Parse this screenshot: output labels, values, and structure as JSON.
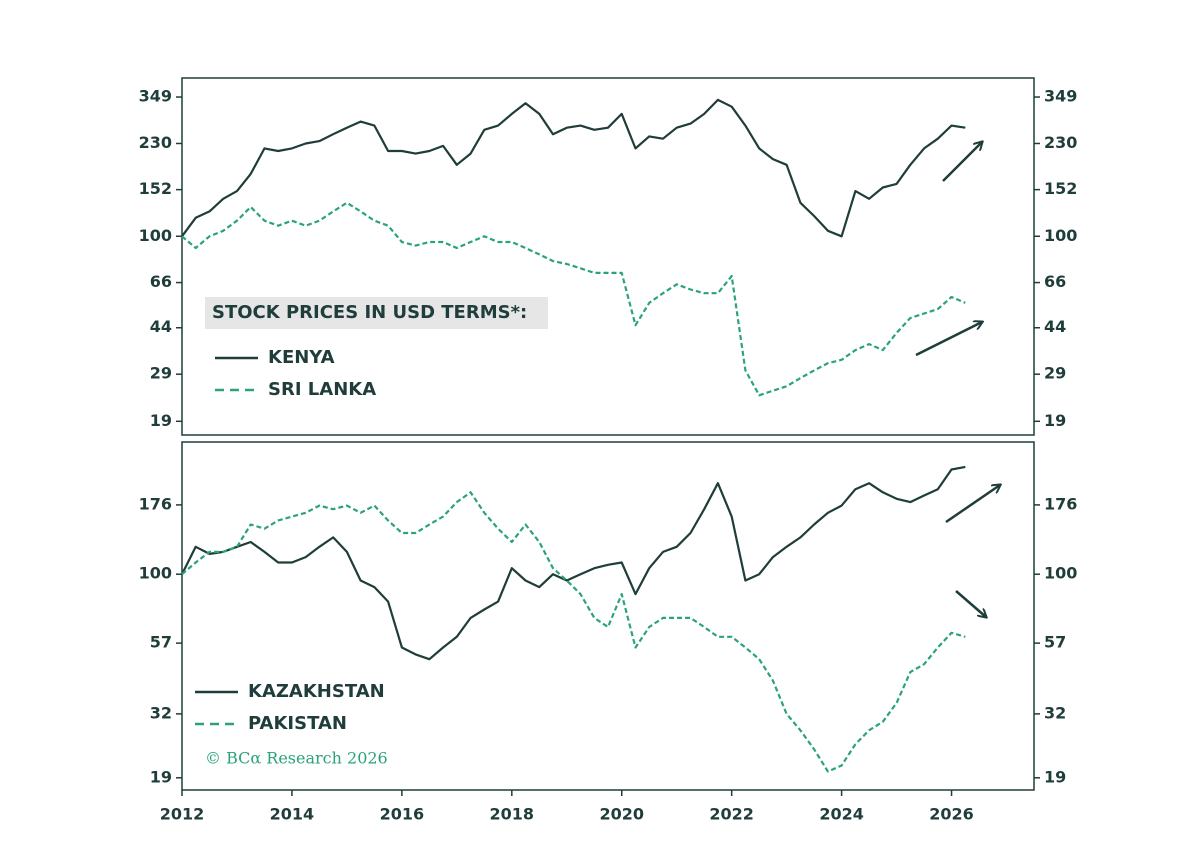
{
  "chart_data": [
    {
      "type": "line",
      "log_scale": true,
      "legend_title": "STOCK PRICES IN USD TERMS*:",
      "x": [
        2012,
        2012.25,
        2012.5,
        2012.75,
        2013,
        2013.25,
        2013.5,
        2013.75,
        2014,
        2014.25,
        2014.5,
        2014.75,
        2015,
        2015.25,
        2015.5,
        2015.75,
        2016,
        2016.25,
        2016.5,
        2016.75,
        2017,
        2017.25,
        2017.5,
        2017.75,
        2018,
        2018.25,
        2018.5,
        2018.75,
        2019,
        2019.25,
        2019.5,
        2019.75,
        2020,
        2020.25,
        2020.5,
        2020.75,
        2021,
        2021.25,
        2021.5,
        2021.75,
        2022,
        2022.25,
        2022.5,
        2022.75,
        2023,
        2023.25,
        2023.5,
        2023.75,
        2024,
        2024.25,
        2024.5,
        2024.75,
        2025,
        2025.25,
        2025.5,
        2025.75,
        2026,
        2026.25
      ],
      "xlim": [
        2012,
        2027.5
      ],
      "ylim": [
        16.8,
        414
      ],
      "yticks": [
        19,
        29,
        44,
        66,
        100,
        152,
        230,
        349
      ],
      "series": [
        {
          "name": "KENYA",
          "color": "#1f3d3a",
          "style": "solid",
          "values": [
            100,
            118,
            125,
            140,
            150,
            175,
            220,
            215,
            220,
            230,
            235,
            250,
            265,
            280,
            270,
            215,
            215,
            210,
            215,
            225,
            190,
            210,
            260,
            270,
            300,
            330,
            300,
            250,
            265,
            270,
            260,
            265,
            300,
            220,
            245,
            240,
            265,
            275,
            300,
            340,
            320,
            270,
            220,
            200,
            190,
            135,
            120,
            105,
            100,
            150,
            140,
            155,
            160,
            190,
            220,
            240,
            270,
            265
          ]
        },
        {
          "name": "SRI LANKA",
          "color": "#2aa37a",
          "style": "dashed",
          "values": [
            100,
            90,
            100,
            105,
            115,
            130,
            115,
            110,
            115,
            110,
            115,
            125,
            135,
            125,
            115,
            110,
            95,
            92,
            95,
            95,
            90,
            95,
            100,
            95,
            95,
            90,
            85,
            80,
            78,
            75,
            72,
            72,
            72,
            45,
            55,
            60,
            65,
            62,
            60,
            60,
            70,
            30,
            24,
            25,
            26,
            28,
            30,
            32,
            33,
            36,
            38,
            36,
            42,
            48,
            50,
            52,
            58,
            55
          ]
        }
      ]
    },
    {
      "type": "line",
      "log_scale": true,
      "source": "© BCα Research 2026",
      "x": [
        2012,
        2012.25,
        2012.5,
        2012.75,
        2013,
        2013.25,
        2013.5,
        2013.75,
        2014,
        2014.25,
        2014.5,
        2014.75,
        2015,
        2015.25,
        2015.5,
        2015.75,
        2016,
        2016.25,
        2016.5,
        2016.75,
        2017,
        2017.25,
        2017.5,
        2017.75,
        2018,
        2018.25,
        2018.5,
        2018.75,
        2019,
        2019.25,
        2019.5,
        2019.75,
        2020,
        2020.25,
        2020.5,
        2020.75,
        2021,
        2021.25,
        2021.5,
        2021.75,
        2022,
        2022.25,
        2022.5,
        2022.75,
        2023,
        2023.25,
        2023.5,
        2023.75,
        2024,
        2024.25,
        2024.5,
        2024.75,
        2025,
        2025.25,
        2025.5,
        2025.75,
        2026,
        2026.25
      ],
      "xlim": [
        2012,
        2027.5
      ],
      "xticks": [
        2012,
        2014,
        2016,
        2018,
        2020,
        2022,
        2024,
        2026
      ],
      "ylim": [
        17.2,
        294
      ],
      "yticks": [
        19,
        32,
        57,
        100,
        176
      ],
      "series": [
        {
          "name": "KAZAKHSTAN",
          "color": "#1f3d3a",
          "style": "solid",
          "values": [
            100,
            125,
            118,
            120,
            125,
            130,
            120,
            110,
            110,
            115,
            125,
            135,
            120,
            95,
            90,
            80,
            55,
            52,
            50,
            55,
            60,
            70,
            75,
            80,
            105,
            95,
            90,
            100,
            95,
            100,
            105,
            108,
            110,
            85,
            105,
            120,
            125,
            140,
            170,
            210,
            160,
            95,
            100,
            115,
            125,
            135,
            150,
            165,
            175,
            200,
            210,
            195,
            185,
            180,
            190,
            200,
            235,
            240
          ]
        },
        {
          "name": "PAKISTAN",
          "color": "#2aa37a",
          "style": "dashed",
          "values": [
            100,
            110,
            120,
            120,
            125,
            150,
            145,
            155,
            160,
            165,
            175,
            170,
            175,
            165,
            175,
            155,
            140,
            140,
            150,
            160,
            180,
            195,
            165,
            145,
            130,
            150,
            130,
            105,
            95,
            85,
            70,
            65,
            85,
            55,
            65,
            70,
            70,
            70,
            65,
            60,
            60,
            55,
            50,
            42,
            32,
            28,
            24,
            20,
            21,
            25,
            28,
            30,
            35,
            45,
            48,
            55,
            62,
            60
          ]
        }
      ]
    }
  ]
}
